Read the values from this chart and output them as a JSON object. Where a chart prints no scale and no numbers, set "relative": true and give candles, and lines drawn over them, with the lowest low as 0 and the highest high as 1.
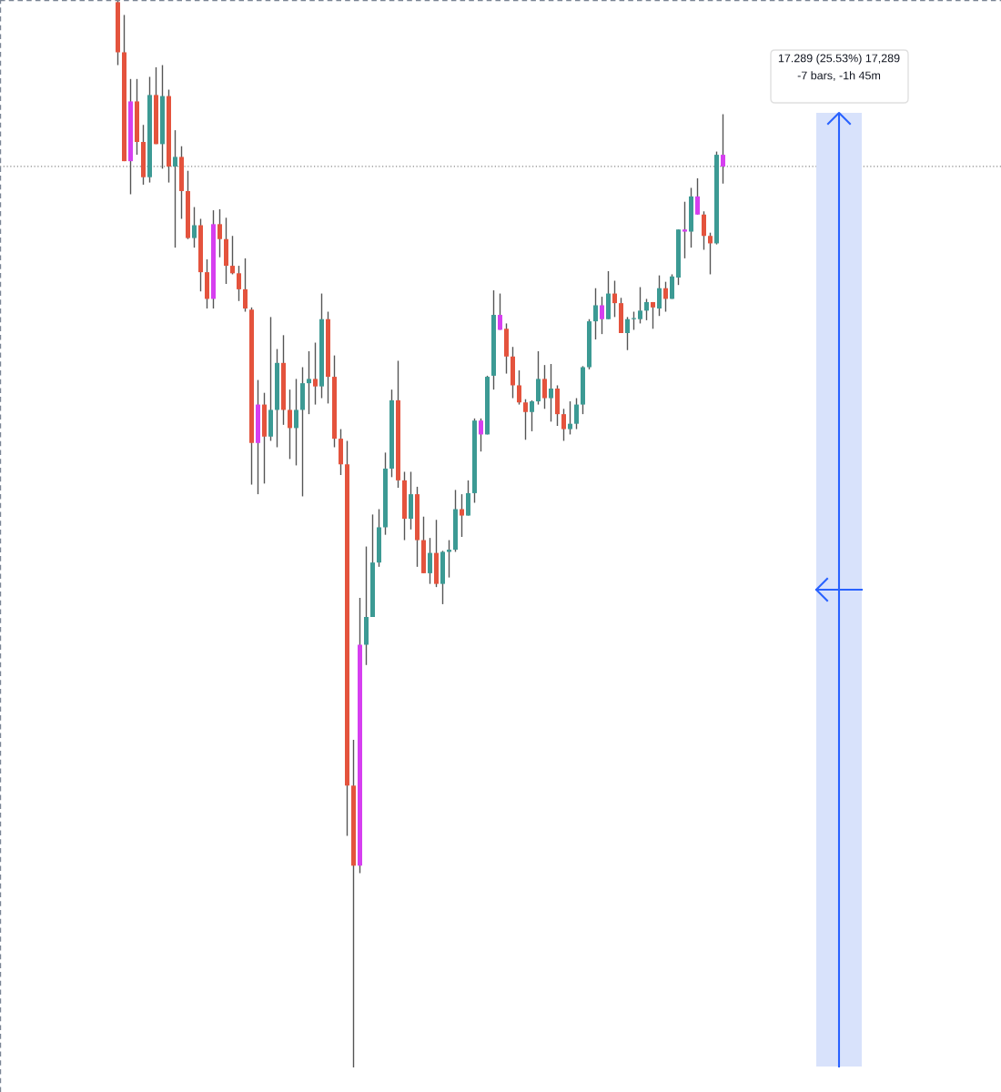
{
  "chart_data": {
    "type": "candlestick",
    "relative": true,
    "categories": [
      null,
      null,
      null,
      null,
      null,
      null,
      null,
      null,
      null,
      null,
      null,
      null,
      null,
      null,
      null,
      null,
      null,
      null,
      null,
      null,
      null,
      null,
      null,
      null,
      null,
      null,
      null,
      null,
      null,
      null,
      null,
      null,
      null,
      null,
      null,
      null,
      null,
      null,
      null,
      null,
      null,
      null,
      null,
      null,
      null,
      null,
      null,
      null,
      null,
      null,
      null,
      null,
      null,
      null,
      null,
      null,
      null,
      null,
      null,
      null,
      null,
      null,
      null,
      null,
      null,
      null,
      null,
      null,
      null,
      null,
      null,
      null,
      null,
      null,
      null,
      null,
      null,
      null,
      null,
      null,
      null,
      null,
      null,
      null,
      null,
      null,
      null,
      null,
      null,
      null,
      null,
      null,
      null,
      null,
      null,
      null
    ],
    "ohlc": [
      [
        0.998,
        1.0,
        0.939,
        0.951
      ],
      [
        0.951,
        0.986,
        0.849,
        0.849
      ],
      [
        0.849,
        0.926,
        0.818,
        0.905
      ],
      [
        0.905,
        0.926,
        0.855,
        0.867
      ],
      [
        0.867,
        0.883,
        0.827,
        0.834
      ],
      [
        0.834,
        0.928,
        0.829,
        0.911
      ],
      [
        0.911,
        0.937,
        0.865,
        0.865
      ],
      [
        0.865,
        0.939,
        0.842,
        0.91
      ],
      [
        0.91,
        0.916,
        0.829,
        0.844
      ],
      [
        0.844,
        0.878,
        0.768,
        0.853
      ],
      [
        0.853,
        0.863,
        0.795,
        0.821
      ],
      [
        0.821,
        0.84,
        0.776,
        0.777
      ],
      [
        0.777,
        0.806,
        0.768,
        0.789
      ],
      [
        0.789,
        0.795,
        0.727,
        0.745
      ],
      [
        0.745,
        0.757,
        0.711,
        0.72
      ],
      [
        0.72,
        0.803,
        0.711,
        0.79
      ],
      [
        0.79,
        0.804,
        0.759,
        0.776
      ],
      [
        0.776,
        0.796,
        0.734,
        0.751
      ],
      [
        0.751,
        0.779,
        0.743,
        0.744
      ],
      [
        0.744,
        0.751,
        0.718,
        0.729
      ],
      [
        0.729,
        0.758,
        0.708,
        0.711
      ],
      [
        0.71,
        0.712,
        0.546,
        0.585
      ],
      [
        0.585,
        0.644,
        0.537,
        0.621
      ],
      [
        0.621,
        0.632,
        0.547,
        0.591
      ],
      [
        0.591,
        0.703,
        0.587,
        0.616
      ],
      [
        0.616,
        0.673,
        0.581,
        0.66
      ],
      [
        0.66,
        0.686,
        0.602,
        0.616
      ],
      [
        0.616,
        0.635,
        0.57,
        0.599
      ],
      [
        0.599,
        0.645,
        0.564,
        0.616
      ],
      [
        0.616,
        0.656,
        0.535,
        0.641
      ],
      [
        0.641,
        0.671,
        0.612,
        0.645
      ],
      [
        0.645,
        0.679,
        0.621,
        0.638
      ],
      [
        0.638,
        0.725,
        0.627,
        0.701
      ],
      [
        0.701,
        0.708,
        0.622,
        0.647
      ],
      [
        0.647,
        0.667,
        0.581,
        0.589
      ],
      [
        0.589,
        0.598,
        0.555,
        0.565
      ],
      [
        0.565,
        0.587,
        0.217,
        0.264
      ],
      [
        0.264,
        0.307,
        0.0,
        0.189
      ],
      [
        0.189,
        0.44,
        0.182,
        0.396
      ],
      [
        0.396,
        0.488,
        0.377,
        0.422
      ],
      [
        0.422,
        0.518,
        0.422,
        0.473
      ],
      [
        0.473,
        0.523,
        0.469,
        0.506
      ],
      [
        0.506,
        0.576,
        0.499,
        0.561
      ],
      [
        0.561,
        0.635,
        0.553,
        0.625
      ],
      [
        0.625,
        0.662,
        0.543,
        0.55
      ],
      [
        0.55,
        0.558,
        0.494,
        0.514
      ],
      [
        0.514,
        0.558,
        0.504,
        0.537
      ],
      [
        0.537,
        0.544,
        0.469,
        0.494
      ],
      [
        0.494,
        0.516,
        0.463,
        0.463
      ],
      [
        0.463,
        0.496,
        0.453,
        0.482
      ],
      [
        0.482,
        0.513,
        0.45,
        0.453
      ],
      [
        0.453,
        0.484,
        0.434,
        0.483
      ],
      [
        0.483,
        0.494,
        0.459,
        0.485
      ],
      [
        0.485,
        0.541,
        0.483,
        0.523
      ],
      [
        0.523,
        0.537,
        0.497,
        0.517
      ],
      [
        0.517,
        0.55,
        0.517,
        0.538
      ],
      [
        0.538,
        0.608,
        0.529,
        0.606
      ],
      [
        0.593,
        0.608,
        0.577,
        0.606
      ],
      [
        0.593,
        0.648,
        0.593,
        0.647
      ],
      [
        0.648,
        0.728,
        0.635,
        0.705
      ],
      [
        0.705,
        0.725,
        0.691,
        0.691
      ],
      [
        0.692,
        0.697,
        0.65,
        0.666
      ],
      [
        0.666,
        0.675,
        0.627,
        0.639
      ],
      [
        0.639,
        0.653,
        0.621,
        0.623
      ],
      [
        0.623,
        0.626,
        0.588,
        0.614
      ],
      [
        0.614,
        0.625,
        0.596,
        0.624
      ],
      [
        0.624,
        0.671,
        0.621,
        0.645
      ],
      [
        0.645,
        0.658,
        0.617,
        0.627
      ],
      [
        0.627,
        0.659,
        0.605,
        0.636
      ],
      [
        0.636,
        0.639,
        0.601,
        0.612
      ],
      [
        0.612,
        0.617,
        0.587,
        0.598
      ],
      [
        0.598,
        0.624,
        0.593,
        0.603
      ],
      [
        0.603,
        0.627,
        0.598,
        0.621
      ],
      [
        0.621,
        0.657,
        0.612,
        0.656
      ],
      [
        0.656,
        0.701,
        0.654,
        0.699
      ],
      [
        0.699,
        0.73,
        0.682,
        0.714
      ],
      [
        0.714,
        0.722,
        0.687,
        0.701
      ],
      [
        0.701,
        0.746,
        0.701,
        0.725
      ],
      [
        0.725,
        0.737,
        0.703,
        0.716
      ],
      [
        0.716,
        0.721,
        0.688,
        0.688
      ],
      [
        0.688,
        0.703,
        0.672,
        0.701
      ],
      [
        0.701,
        0.708,
        0.691,
        0.702
      ],
      [
        0.701,
        0.731,
        0.697,
        0.709
      ],
      [
        0.709,
        0.72,
        0.7,
        0.717
      ],
      [
        0.717,
        0.717,
        0.692,
        0.712
      ],
      [
        0.711,
        0.742,
        0.704,
        0.73
      ],
      [
        0.73,
        0.736,
        0.708,
        0.72
      ],
      [
        0.72,
        0.743,
        0.72,
        0.741
      ],
      [
        0.74,
        0.785,
        0.733,
        0.785
      ],
      [
        0.783,
        0.811,
        0.758,
        0.785
      ],
      [
        0.783,
        0.824,
        0.768,
        0.816
      ],
      [
        0.816,
        0.833,
        0.799,
        0.799
      ],
      [
        0.799,
        0.802,
        0.766,
        0.779
      ],
      [
        0.779,
        0.782,
        0.743,
        0.772
      ],
      [
        0.772,
        0.858,
        0.771,
        0.855
      ],
      [
        0.855,
        0.893,
        0.828,
        0.844
      ]
    ],
    "colors": [
      "#e4533d",
      "#e4533d",
      "#d63ff0",
      "#e4533d",
      "#e4533d",
      "#3c9a94",
      "#e4533d",
      "#3c9a94",
      "#e4533d",
      "#3c9a94",
      "#e4533d",
      "#e4533d",
      "#3c9a94",
      "#e4533d",
      "#e4533d",
      "#d63ff0",
      "#e4533d",
      "#e4533d",
      "#e4533d",
      "#e4533d",
      "#e4533d",
      "#e4533d",
      "#d63ff0",
      "#e4533d",
      "#3c9a94",
      "#3c9a94",
      "#e4533d",
      "#e4533d",
      "#3c9a94",
      "#3c9a94",
      "#3c9a94",
      "#e4533d",
      "#3c9a94",
      "#e4533d",
      "#e4533d",
      "#e4533d",
      "#e4533d",
      "#e4533d",
      "#d63ff0",
      "#3c9a94",
      "#3c9a94",
      "#3c9a94",
      "#3c9a94",
      "#3c9a94",
      "#e4533d",
      "#e4533d",
      "#3c9a94",
      "#e4533d",
      "#e4533d",
      "#3c9a94",
      "#e4533d",
      "#3c9a94",
      "#3c9a94",
      "#3c9a94",
      "#e4533d",
      "#3c9a94",
      "#3c9a94",
      "#d63ff0",
      "#3c9a94",
      "#3c9a94",
      "#d63ff0",
      "#e4533d",
      "#e4533d",
      "#e4533d",
      "#e4533d",
      "#3c9a94",
      "#3c9a94",
      "#e4533d",
      "#3c9a94",
      "#e4533d",
      "#e4533d",
      "#3c9a94",
      "#3c9a94",
      "#3c9a94",
      "#3c9a94",
      "#3c9a94",
      "#d63ff0",
      "#3c9a94",
      "#e4533d",
      "#e4533d",
      "#3c9a94",
      "#3c9a94",
      "#3c9a94",
      "#3c9a94",
      "#e4533d",
      "#3c9a94",
      "#e4533d",
      "#3c9a94",
      "#3c9a94",
      "#d63ff0",
      "#3c9a94",
      "#d63ff0",
      "#e4533d",
      "#e4533d",
      "#3c9a94",
      "#d63ff0"
    ],
    "ref_lines": [
      {
        "axis": "y",
        "value": 0.844,
        "color": "#8a8a8a",
        "line_style": "dotted"
      }
    ],
    "annotations": [
      "17.289 (25.53%) 17,289",
      "-7 bars, -1h 45m"
    ]
  }
}
